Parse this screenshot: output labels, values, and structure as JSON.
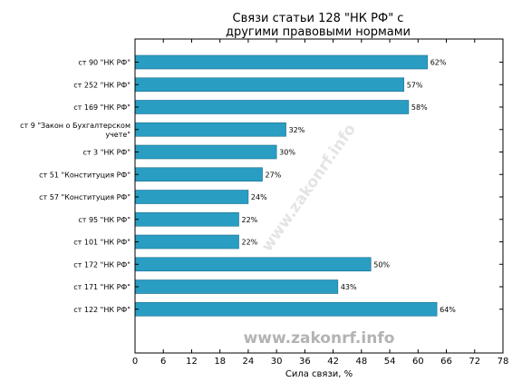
{
  "chart_data": {
    "type": "bar",
    "orientation": "horizontal",
    "title": [
      "Связи статьи 128 \"НК РФ\" с",
      "другими правовыми нормами"
    ],
    "xlabel": "Сила связи, %",
    "xlim": [
      0,
      78
    ],
    "xticks": [
      0,
      6,
      12,
      18,
      24,
      30,
      36,
      42,
      48,
      54,
      60,
      66,
      72,
      78
    ],
    "grid": false,
    "bar_color": "#2a9dc3",
    "categories": [
      "ст 90 \"НК РФ\"",
      "ст 252 \"НК РФ\"",
      "ст 169 \"НК РФ\"",
      "ст 9 \"Закон о Бухгалтерском учете\"",
      "ст 3 \"НК РФ\"",
      "ст 51 \"Конституция РФ\"",
      "ст 57 \"Конституция РФ\"",
      "ст 95 \"НК РФ\"",
      "ст 101 \"НК РФ\"",
      "ст 172 \"НК РФ\"",
      "ст 171 \"НК РФ\"",
      "ст 122 \"НК РФ\""
    ],
    "category_lines": [
      [
        "ст 90 \"НК РФ\""
      ],
      [
        "ст 252 \"НК РФ\""
      ],
      [
        "ст 169 \"НК РФ\""
      ],
      [
        "ст 9 \"Закон о Бухгалтерском",
        "учете\""
      ],
      [
        "ст 3 \"НК РФ\""
      ],
      [
        "ст 51 \"Конституция РФ\""
      ],
      [
        "ст 57 \"Конституция РФ\""
      ],
      [
        "ст 95 \"НК РФ\""
      ],
      [
        "ст 101 \"НК РФ\""
      ],
      [
        "ст 172 \"НК РФ\""
      ],
      [
        "ст 171 \"НК РФ\""
      ],
      [
        "ст 122 \"НК РФ\""
      ]
    ],
    "values": [
      62,
      57,
      58,
      32,
      30,
      27,
      24,
      22,
      22,
      50,
      43,
      64
    ],
    "value_labels": [
      "62%",
      "57%",
      "58%",
      "32%",
      "30%",
      "27%",
      "24%",
      "22%",
      "22%",
      "50%",
      "43%",
      "64%"
    ]
  },
  "watermark": "www.zakonrf.info",
  "watermark_diagonal": "www.zakonrf.info"
}
